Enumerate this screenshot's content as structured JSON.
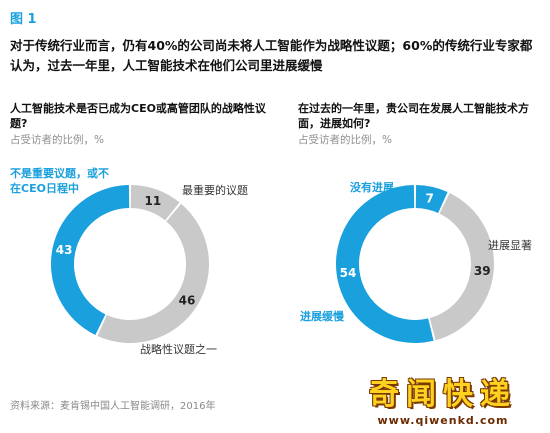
{
  "figure_label": "图 1",
  "headline": "对于传统行业而言，仍有40%的公司尚未将人工智能作为战略性议题；60%的传统行业专家都认为，过去一年里，人工智能技术在他们公司里进展缓慢",
  "source": "资料来源：麦肯锡中国人工智能调研，2016年",
  "watermark": {
    "title": "奇闻快递",
    "url": "www.qiwenkd.com"
  },
  "colors": {
    "accent": "#1aa0dc",
    "secondary": "#c9c9c9"
  },
  "chart_data": [
    {
      "type": "pie",
      "donut": true,
      "title": "人工智能技术是否已成为CEO或高管团队的战略性议题?",
      "subtitle": "占受访者的比例，%",
      "slices": [
        {
          "label": "最重要的议题",
          "value": 11,
          "color": "#c9c9c9"
        },
        {
          "label": "战略性议题之一",
          "value": 46,
          "color": "#c9c9c9"
        },
        {
          "label": "不是重要议题，或不在CEO日程中",
          "value": 43,
          "color": "#1aa0dc"
        }
      ]
    },
    {
      "type": "pie",
      "donut": true,
      "title": "在过去的一年里，贵公司在发展人工智能技术方面，进展如何?",
      "subtitle": "占受访者的比例，%",
      "slices": [
        {
          "label": "没有进展",
          "value": 7,
          "color": "#1aa0dc"
        },
        {
          "label": "进展显著",
          "value": 39,
          "color": "#c9c9c9"
        },
        {
          "label": "进展缓慢",
          "value": 54,
          "color": "#1aa0dc"
        }
      ]
    }
  ]
}
